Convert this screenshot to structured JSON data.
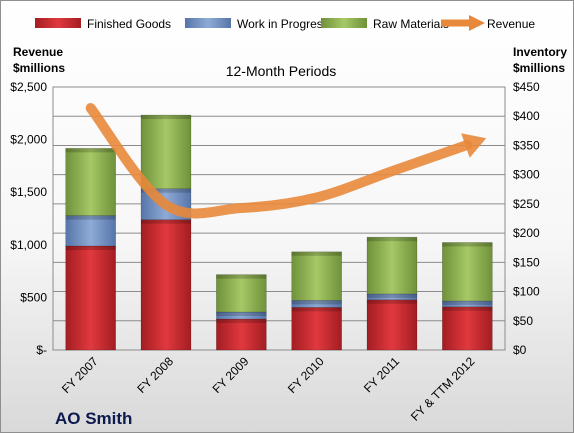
{
  "chart_data": {
    "type": "bar",
    "title": "12-Month Periods",
    "company": "AO Smith",
    "y_left_label_line1": "Revenue",
    "y_left_label_line2": "$millions",
    "y_right_label_line1": "Inventory",
    "y_right_label_line2": "$millions",
    "categories": [
      "FY 2007",
      "FY 2008",
      "FY 2009",
      "FY 2010",
      "FY 2011",
      "FY & TTM 2012"
    ],
    "left_axis": {
      "min": 0,
      "max": 2500,
      "ticks": [
        "$-",
        "$500",
        "$1,000",
        "$1,500",
        "$2,000",
        "$2,500"
      ]
    },
    "right_axis": {
      "min": 0,
      "max": 450,
      "ticks": [
        "$0",
        "$50",
        "$100",
        "$150",
        "$200",
        "$250",
        "$300",
        "$350",
        "$400",
        "$450"
      ]
    },
    "grid": true,
    "legend_position": "top",
    "series": [
      {
        "name": "Finished Goods",
        "color": "#c0262b",
        "axis": "right",
        "stacked": true,
        "values": [
          178,
          223,
          53,
          73,
          86,
          74
        ]
      },
      {
        "name": "Work in Progress",
        "color": "#6f8fc2",
        "axis": "right",
        "stacked": true,
        "values": [
          52,
          53,
          12,
          12,
          10,
          10
        ]
      },
      {
        "name": "Raw Materials",
        "color": "#8db04a",
        "axis": "right",
        "stacked": true,
        "values": [
          115,
          126,
          64,
          83,
          97,
          100
        ]
      },
      {
        "name": "Revenue",
        "color": "#e8883a",
        "axis": "left",
        "type": "line",
        "values": [
          2300,
          1380,
          1350,
          1450,
          1700,
          1950
        ]
      }
    ]
  }
}
